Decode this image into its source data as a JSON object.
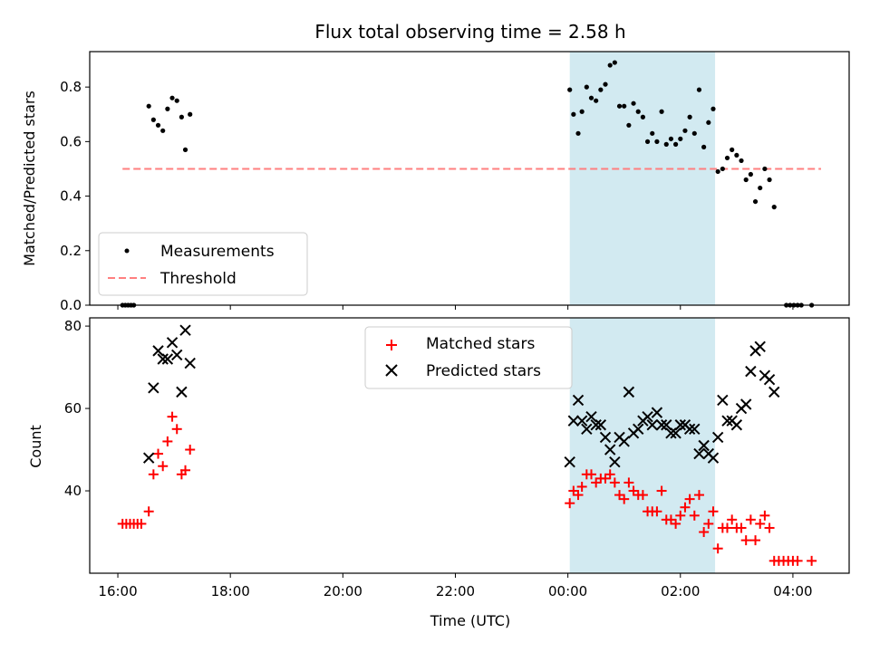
{
  "chart_data": [
    {
      "type": "scatter",
      "title": "Flux total observing time = 2.58 h",
      "ylabel": "Matched/Predicted stars",
      "xlim": [
        "15:30",
        "05:00"
      ],
      "ylim": [
        0,
        0.93
      ],
      "yticks": [
        0.0,
        0.2,
        0.4,
        0.6,
        0.8
      ],
      "ytick_labels": [
        "0.0",
        "0.2",
        "0.4",
        "0.6",
        "0.8"
      ],
      "legend_position": "lower-left",
      "highlight_span": {
        "from": "00:02",
        "to": "02:37",
        "color": "#add8e6"
      },
      "threshold": {
        "name": "Threshold",
        "y": 0.5,
        "from": "16:05",
        "to": "04:30",
        "color": "#ff7f7f",
        "style": "dashed"
      },
      "series": [
        {
          "name": "Measurements",
          "color": "#000000",
          "marker": "dot",
          "points": [
            [
              "16:05",
              0
            ],
            [
              "16:08",
              0
            ],
            [
              "16:11",
              0
            ],
            [
              "16:14",
              0
            ],
            [
              "16:17",
              0
            ],
            [
              "16:33",
              0.73
            ],
            [
              "16:38",
              0.68
            ],
            [
              "16:43",
              0.66
            ],
            [
              "16:48",
              0.64
            ],
            [
              "16:53",
              0.72
            ],
            [
              "16:58",
              0.76
            ],
            [
              "17:03",
              0.75
            ],
            [
              "17:08",
              0.69
            ],
            [
              "17:12",
              0.57
            ],
            [
              "17:17",
              0.7
            ],
            [
              "00:02",
              0.79
            ],
            [
              "00:06",
              0.7
            ],
            [
              "00:11",
              0.63
            ],
            [
              "00:15",
              0.71
            ],
            [
              "00:20",
              0.8
            ],
            [
              "00:25",
              0.76
            ],
            [
              "00:30",
              0.75
            ],
            [
              "00:35",
              0.79
            ],
            [
              "00:40",
              0.81
            ],
            [
              "00:45",
              0.88
            ],
            [
              "00:50",
              0.89
            ],
            [
              "00:55",
              0.73
            ],
            [
              "01:00",
              0.73
            ],
            [
              "01:05",
              0.66
            ],
            [
              "01:10",
              0.74
            ],
            [
              "01:15",
              0.71
            ],
            [
              "01:20",
              0.69
            ],
            [
              "01:25",
              0.6
            ],
            [
              "01:30",
              0.63
            ],
            [
              "01:35",
              0.6
            ],
            [
              "01:40",
              0.71
            ],
            [
              "01:45",
              0.59
            ],
            [
              "01:50",
              0.61
            ],
            [
              "01:55",
              0.59
            ],
            [
              "02:00",
              0.61
            ],
            [
              "02:05",
              0.64
            ],
            [
              "02:10",
              0.69
            ],
            [
              "02:15",
              0.63
            ],
            [
              "02:20",
              0.79
            ],
            [
              "02:25",
              0.58
            ],
            [
              "02:30",
              0.67
            ],
            [
              "02:35",
              0.72
            ],
            [
              "02:40",
              0.49
            ],
            [
              "02:45",
              0.5
            ],
            [
              "02:50",
              0.54
            ],
            [
              "02:55",
              0.57
            ],
            [
              "03:00",
              0.55
            ],
            [
              "03:05",
              0.53
            ],
            [
              "03:10",
              0.46
            ],
            [
              "03:15",
              0.48
            ],
            [
              "03:20",
              0.38
            ],
            [
              "03:25",
              0.43
            ],
            [
              "03:30",
              0.5
            ],
            [
              "03:35",
              0.46
            ],
            [
              "03:40",
              0.36
            ],
            [
              "03:53",
              0
            ],
            [
              "03:57",
              0
            ],
            [
              "04:01",
              0
            ],
            [
              "04:05",
              0
            ],
            [
              "04:09",
              0
            ],
            [
              "04:20",
              0
            ]
          ]
        }
      ]
    },
    {
      "type": "scatter",
      "xlabel": "Time (UTC)",
      "ylabel": "Count",
      "xlim": [
        "15:30",
        "05:00"
      ],
      "ylim": [
        20,
        82
      ],
      "yticks": [
        40,
        60,
        80
      ],
      "ytick_labels": [
        "40",
        "60",
        "80"
      ],
      "xtick_labels": [
        "16:00",
        "18:00",
        "20:00",
        "22:00",
        "00:00",
        "02:00",
        "04:00"
      ],
      "legend_position": "upper-center",
      "highlight_span": {
        "from": "00:02",
        "to": "02:37",
        "color": "#add8e6"
      },
      "series": [
        {
          "name": "Matched stars",
          "color": "#ff0000",
          "marker": "plus",
          "points": [
            [
              "16:05",
              32
            ],
            [
              "16:09",
              32
            ],
            [
              "16:13",
              32
            ],
            [
              "16:17",
              32
            ],
            [
              "16:21",
              32
            ],
            [
              "16:25",
              32
            ],
            [
              "16:33",
              35
            ],
            [
              "16:38",
              44
            ],
            [
              "16:43",
              49
            ],
            [
              "16:48",
              46
            ],
            [
              "16:53",
              52
            ],
            [
              "16:58",
              58
            ],
            [
              "17:03",
              55
            ],
            [
              "17:08",
              44
            ],
            [
              "17:12",
              45
            ],
            [
              "17:17",
              50
            ],
            [
              "00:02",
              37
            ],
            [
              "00:06",
              40
            ],
            [
              "00:11",
              39
            ],
            [
              "00:15",
              41
            ],
            [
              "00:20",
              44
            ],
            [
              "00:25",
              44
            ],
            [
              "00:30",
              42
            ],
            [
              "00:35",
              43
            ],
            [
              "00:40",
              43
            ],
            [
              "00:45",
              44
            ],
            [
              "00:50",
              42
            ],
            [
              "00:55",
              39
            ],
            [
              "01:00",
              38
            ],
            [
              "01:05",
              42
            ],
            [
              "01:10",
              40
            ],
            [
              "01:15",
              39
            ],
            [
              "01:20",
              39
            ],
            [
              "01:25",
              35
            ],
            [
              "01:30",
              35
            ],
            [
              "01:35",
              35
            ],
            [
              "01:40",
              40
            ],
            [
              "01:45",
              33
            ],
            [
              "01:50",
              33
            ],
            [
              "01:55",
              32
            ],
            [
              "02:00",
              34
            ],
            [
              "02:05",
              36
            ],
            [
              "02:10",
              38
            ],
            [
              "02:15",
              34
            ],
            [
              "02:20",
              39
            ],
            [
              "02:25",
              30
            ],
            [
              "02:30",
              32
            ],
            [
              "02:35",
              35
            ],
            [
              "02:40",
              26
            ],
            [
              "02:45",
              31
            ],
            [
              "02:50",
              31
            ],
            [
              "02:55",
              33
            ],
            [
              "03:00",
              31
            ],
            [
              "03:05",
              31
            ],
            [
              "03:10",
              28
            ],
            [
              "03:15",
              33
            ],
            [
              "03:20",
              28
            ],
            [
              "03:25",
              32
            ],
            [
              "03:30",
              34
            ],
            [
              "03:35",
              31
            ],
            [
              "03:40",
              23
            ],
            [
              "03:45",
              23
            ],
            [
              "03:50",
              23
            ],
            [
              "03:55",
              23
            ],
            [
              "04:00",
              23
            ],
            [
              "04:05",
              23
            ],
            [
              "04:20",
              23
            ]
          ]
        },
        {
          "name": "Predicted stars",
          "color": "#000000",
          "marker": "x",
          "points": [
            [
              "16:33",
              48
            ],
            [
              "16:38",
              65
            ],
            [
              "16:43",
              74
            ],
            [
              "16:48",
              72
            ],
            [
              "16:53",
              72
            ],
            [
              "16:58",
              76
            ],
            [
              "17:03",
              73
            ],
            [
              "17:08",
              64
            ],
            [
              "17:12",
              79
            ],
            [
              "17:17",
              71
            ],
            [
              "00:02",
              47
            ],
            [
              "00:06",
              57
            ],
            [
              "00:11",
              62
            ],
            [
              "00:15",
              57
            ],
            [
              "00:20",
              55
            ],
            [
              "00:25",
              58
            ],
            [
              "00:30",
              56
            ],
            [
              "00:35",
              56
            ],
            [
              "00:40",
              53
            ],
            [
              "00:45",
              50
            ],
            [
              "00:50",
              47
            ],
            [
              "00:55",
              53
            ],
            [
              "01:00",
              52
            ],
            [
              "01:05",
              64
            ],
            [
              "01:10",
              54
            ],
            [
              "01:15",
              55
            ],
            [
              "01:20",
              57
            ],
            [
              "01:25",
              58
            ],
            [
              "01:30",
              56
            ],
            [
              "01:35",
              59
            ],
            [
              "01:40",
              56
            ],
            [
              "01:45",
              56
            ],
            [
              "01:50",
              54
            ],
            [
              "01:55",
              54
            ],
            [
              "02:00",
              56
            ],
            [
              "02:05",
              56
            ],
            [
              "02:10",
              55
            ],
            [
              "02:15",
              55
            ],
            [
              "02:20",
              49
            ],
            [
              "02:25",
              51
            ],
            [
              "02:30",
              49
            ],
            [
              "02:35",
              48
            ],
            [
              "02:40",
              53
            ],
            [
              "02:45",
              62
            ],
            [
              "02:50",
              57
            ],
            [
              "02:55",
              57
            ],
            [
              "03:00",
              56
            ],
            [
              "03:05",
              60
            ],
            [
              "03:10",
              61
            ],
            [
              "03:15",
              69
            ],
            [
              "03:20",
              74
            ],
            [
              "03:25",
              75
            ],
            [
              "03:30",
              68
            ],
            [
              "03:35",
              67
            ],
            [
              "03:40",
              64
            ]
          ]
        }
      ]
    }
  ]
}
